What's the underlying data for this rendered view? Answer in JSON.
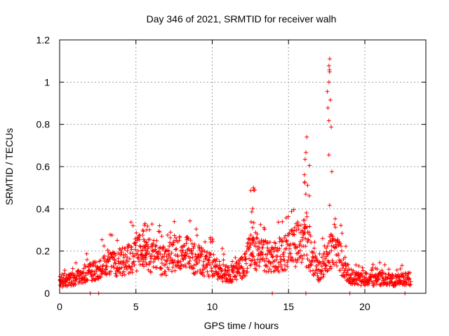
{
  "chart_data": {
    "type": "scatter",
    "title": "Day 346 of 2021, SRMTID for receiver walh",
    "xlabel": "GPS time / hours",
    "ylabel": "SRMTID / TECUs",
    "xlim": [
      0,
      24
    ],
    "ylim": [
      0,
      1.2
    ],
    "x_ticks": [
      0,
      5,
      10,
      15,
      20
    ],
    "x_tick_labels": [
      "0",
      "5",
      "10",
      "15",
      "20"
    ],
    "y_ticks": [
      0,
      0.2,
      0.4,
      0.6,
      0.8,
      1.0,
      1.2
    ],
    "y_tick_labels": [
      "0",
      "0.2",
      "0.4",
      "0.6",
      "0.8",
      "1",
      "1.2"
    ],
    "grid": true,
    "marker": "+",
    "marker_color": "#ff0000",
    "x_range_of_points": [
      0,
      23
    ],
    "baseline_profile": {
      "hours": [
        0,
        0.5,
        1,
        2,
        3,
        4,
        5,
        5.5,
        6,
        7,
        8,
        9,
        10,
        10.5,
        11,
        11.5,
        12,
        12.5,
        13,
        14,
        15,
        15.5,
        16,
        16.5,
        17,
        17.5,
        18,
        18.5,
        19,
        20,
        21,
        22,
        23
      ],
      "typical_srmtid": [
        0.05,
        0.06,
        0.07,
        0.1,
        0.13,
        0.15,
        0.18,
        0.22,
        0.17,
        0.15,
        0.2,
        0.16,
        0.13,
        0.11,
        0.09,
        0.1,
        0.12,
        0.2,
        0.18,
        0.17,
        0.2,
        0.22,
        0.25,
        0.18,
        0.1,
        0.16,
        0.25,
        0.15,
        0.08,
        0.06,
        0.07,
        0.06,
        0.07
      ]
    },
    "notable_peaks": [
      {
        "x": 5.6,
        "y": 0.33
      },
      {
        "x": 12.7,
        "y": 0.5
      },
      {
        "x": 16.2,
        "y": 0.74
      },
      {
        "x": 17.7,
        "y": 1.11
      }
    ]
  }
}
